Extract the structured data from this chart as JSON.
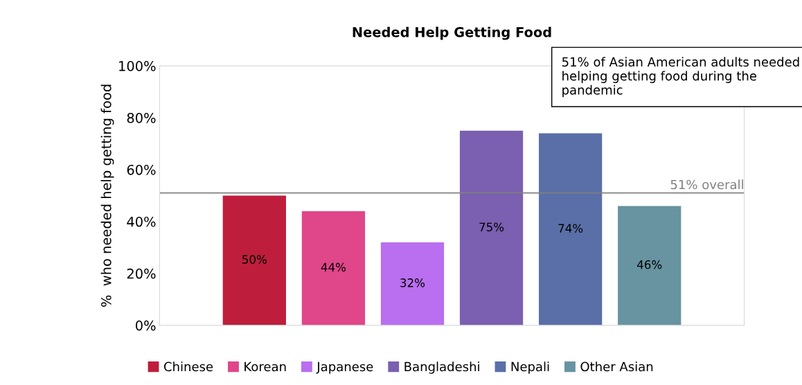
{
  "chart_data": {
    "type": "bar",
    "title": "Needed Help Getting Food",
    "ylabel": "%  who needed help getting food",
    "categories": [
      null
    ],
    "series": [
      {
        "name": "Chinese",
        "color": "#be1e3c",
        "values": [
          50
        ],
        "value_labels": [
          "50%"
        ]
      },
      {
        "name": "Korean",
        "color": "#e0468a",
        "values": [
          44
        ],
        "value_labels": [
          "44%"
        ]
      },
      {
        "name": "Japanese",
        "color": "#b96fef",
        "values": [
          32
        ],
        "value_labels": [
          "32%"
        ]
      },
      {
        "name": "Bangladeshi",
        "color": "#7b5fb0",
        "values": [
          75
        ],
        "value_labels": [
          "75%"
        ]
      },
      {
        "name": "Nepali",
        "color": "#5a6fa8",
        "values": [
          74
        ],
        "value_labels": [
          "74%"
        ]
      },
      {
        "name": "Other Asian",
        "color": "#6893a0",
        "values": [
          46
        ],
        "value_labels": [
          "46%"
        ]
      }
    ],
    "ylim": [
      0,
      100
    ],
    "yticks": [
      {
        "value": 0,
        "label": "0%"
      },
      {
        "value": 20,
        "label": "20%"
      },
      {
        "value": 40,
        "label": "40%"
      },
      {
        "value": 60,
        "label": "60%"
      },
      {
        "value": 80,
        "label": "80%"
      },
      {
        "value": 100,
        "label": "100%"
      }
    ],
    "ref_lines": [
      {
        "axis": "y",
        "value": 51,
        "label": "51% overall",
        "color": "#808080"
      }
    ],
    "annotations": [
      "51% of Asian American adults needed helping getting food during the pandemic"
    ],
    "grid": false,
    "legend": "bottom"
  }
}
